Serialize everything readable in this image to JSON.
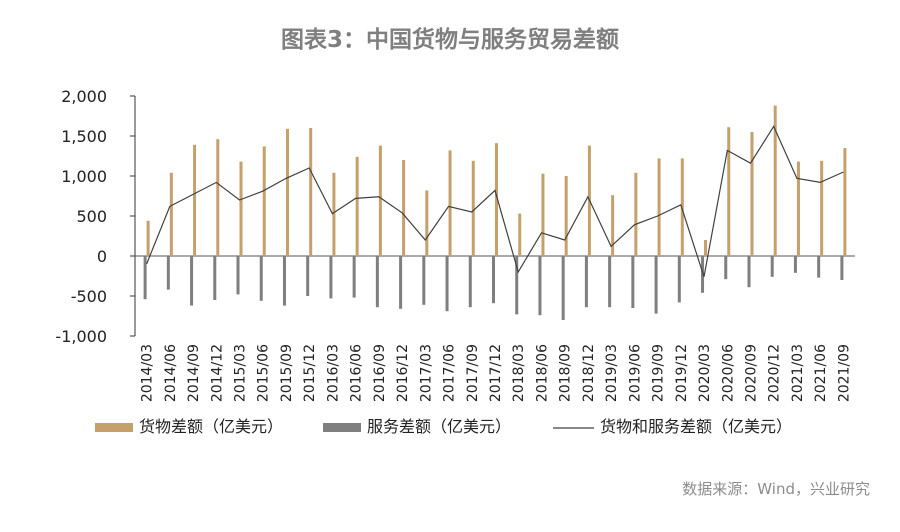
{
  "chart_data": {
    "type": "bar+line",
    "title": "图表3：中国货物与服务贸易差额",
    "source": "数据来源：Wind，兴业研究",
    "categories": [
      "2014/03",
      "2014/06",
      "2014/09",
      "2014/12",
      "2015/03",
      "2015/06",
      "2015/09",
      "2015/12",
      "2016/03",
      "2016/06",
      "2016/09",
      "2016/12",
      "2017/03",
      "2017/06",
      "2017/09",
      "2017/12",
      "2018/03",
      "2018/06",
      "2018/09",
      "2018/12",
      "2019/03",
      "2019/06",
      "2019/09",
      "2019/12",
      "2020/03",
      "2020/06",
      "2020/09",
      "2020/12",
      "2021/03",
      "2021/06",
      "2021/09"
    ],
    "yticks": [
      "2,000",
      "1,500",
      "1,000",
      "500",
      "0",
      "-500",
      "-1,000"
    ],
    "ylim": [
      -1000,
      2000
    ],
    "series": [
      {
        "name": "货物差额（亿美元）",
        "kind": "bar",
        "color": "#c5a06a",
        "values": [
          440,
          1040,
          1390,
          1460,
          1180,
          1370,
          1590,
          1600,
          1040,
          1240,
          1380,
          1200,
          820,
          1320,
          1190,
          1410,
          530,
          1030,
          1000,
          1380,
          760,
          1040,
          1220,
          1220,
          200,
          1610,
          1550,
          1880,
          1180,
          1190,
          1350
        ]
      },
      {
        "name": "服务差额（亿美元）",
        "kind": "bar",
        "color": "#7f7f7f",
        "values": [
          -540,
          -420,
          -620,
          -550,
          -480,
          -560,
          -620,
          -500,
          -530,
          -520,
          -640,
          -660,
          -610,
          -690,
          -640,
          -590,
          -730,
          -740,
          -800,
          -640,
          -640,
          -650,
          -720,
          -580,
          -460,
          -290,
          -390,
          -260,
          -210,
          -270,
          -300
        ]
      },
      {
        "name": "货物和服务差额（亿美元）",
        "kind": "line",
        "color": "#404040",
        "values": [
          -100,
          620,
          770,
          920,
          700,
          810,
          970,
          1100,
          530,
          720,
          740,
          540,
          200,
          620,
          550,
          820,
          -200,
          290,
          200,
          740,
          120,
          390,
          500,
          640,
          -260,
          1320,
          1160,
          1620,
          970,
          920,
          1050
        ]
      }
    ]
  }
}
